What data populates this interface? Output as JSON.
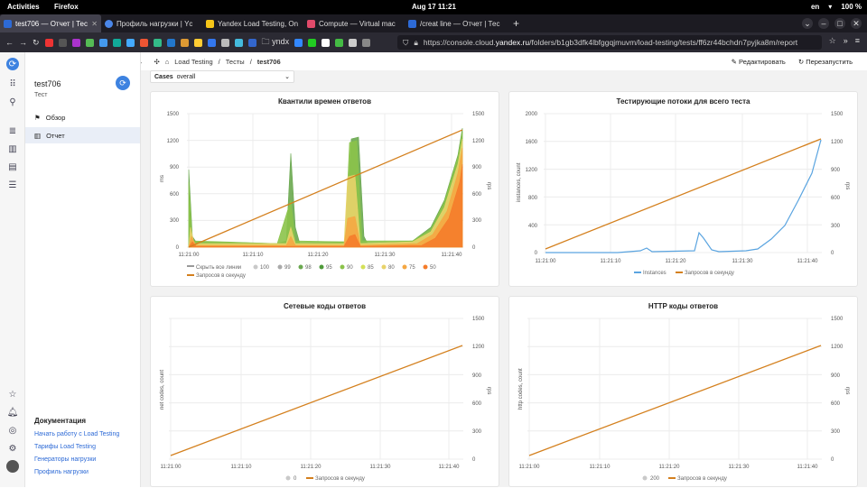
{
  "system_bar": {
    "activities": "Activities",
    "app": "Firefox",
    "clock": "Aug 17  11:21",
    "lang": "en",
    "battery": "100 %"
  },
  "browser": {
    "tabs": [
      {
        "title": "test706 — Отчет | Тест",
        "color": "#2d6ad6",
        "active": true
      },
      {
        "title": "Профиль нагрузки | Yc",
        "color": "#4a86e8",
        "active": false
      },
      {
        "title": "Yandex Load Testing, On",
        "color": "#f5c518",
        "active": false
      },
      {
        "title": "Compute — Virtual mac",
        "color": "#e04a6a",
        "active": false
      },
      {
        "title": "/creat line — Отчет | Тес",
        "color": "#2d6ad6",
        "active": false
      }
    ],
    "new_tab": "+",
    "bookmark_folder": "yndx",
    "url_prefix": "https://console.cloud.",
    "url_domain": "yandex.ru",
    "url_rest": "/folders/b1gb3dfk4lbfggqjmuvm/load-testing/tests/ff6zr44bchdn7pyjka8m/report"
  },
  "breadcrumb": {
    "cloud": "vibo-cloud",
    "chip": "FC",
    "catalog": "vibo-catalog",
    "section": "Load Testing",
    "tests": "Тесты",
    "current": "test706"
  },
  "actions": {
    "edit": "Редактировать",
    "restart": "Перезапустить"
  },
  "nav": {
    "title": "test706",
    "subtitle": "Тест",
    "items": [
      {
        "label": "Обзор"
      },
      {
        "label": "Отчет"
      }
    ],
    "docs_title": "Документация",
    "docs": [
      "Начать работу с Load Testing",
      "Тарифы Load Testing",
      "Генераторы нагрузки",
      "Профиль нагрузки"
    ]
  },
  "filter": {
    "label": "Cases",
    "value": "overall"
  },
  "charts": {
    "quantiles": {
      "title": "Квантили времен ответов",
      "ylabel_left": "ms",
      "ylabel_right": "rps",
      "left_ticks": [
        "1500",
        "1200",
        "900",
        "600",
        "300",
        "0"
      ],
      "right_ticks": [
        "1500",
        "1200",
        "900",
        "600",
        "300",
        "0"
      ],
      "x_ticks": [
        "11:21:00",
        "11:21:10",
        "11:21:20",
        "11:21:30",
        "11:21:40"
      ],
      "legend_hide": "Скрыть все линии",
      "legend": [
        {
          "label": "100",
          "color": "#c9c9c9"
        },
        {
          "label": "99",
          "color": "#aaaaaa"
        },
        {
          "label": "98",
          "color": "#6aa84f"
        },
        {
          "label": "95",
          "color": "#4e9a3a"
        },
        {
          "label": "90",
          "color": "#8bc34a"
        },
        {
          "label": "85",
          "color": "#d4e157"
        },
        {
          "label": "80",
          "color": "#e8d36a"
        },
        {
          "label": "75",
          "color": "#f5a742"
        },
        {
          "label": "50",
          "color": "#f57c2a"
        }
      ],
      "rps_label": "Запросов в секунду"
    },
    "threads": {
      "title": "Тестирующие потоки для всего теста",
      "ylabel_left": "instances, count",
      "ylabel_right": "rps",
      "left_ticks": [
        "2000",
        "1600",
        "1200",
        "800",
        "400",
        "0"
      ],
      "right_ticks": [
        "1500",
        "1200",
        "900",
        "600",
        "300",
        "0"
      ],
      "x_ticks": [
        "11:21:00",
        "11:21:10",
        "11:21:20",
        "11:21:30",
        "11:21:40"
      ],
      "legend_instances": "Instances",
      "rps_label": "Запросов в секунду"
    },
    "net_codes": {
      "title": "Сетевые коды ответов",
      "ylabel_left": "net codes, count",
      "ylabel_right": "rps",
      "right_ticks": [
        "1500",
        "1200",
        "900",
        "600",
        "300",
        "0"
      ],
      "x_ticks": [
        "11:21:00",
        "11:21:10",
        "11:21:20",
        "11:21:30",
        "11:21:40"
      ],
      "legend_code": "0",
      "rps_label": "Запросов в секунду"
    },
    "http_codes": {
      "title": "HTTP коды ответов",
      "ylabel_left": "http codes, count",
      "ylabel_right": "rps",
      "right_ticks": [
        "1500",
        "1200",
        "900",
        "600",
        "300",
        "0"
      ],
      "x_ticks": [
        "11:21:00",
        "11:21:10",
        "11:21:20",
        "11:21:30",
        "11:21:40"
      ],
      "legend_code": "200",
      "rps_label": "Запросов в секунду"
    }
  },
  "colors": {
    "rps": "#d4801e",
    "instances": "#5aa4e0",
    "accent": "#3d82e0"
  }
}
